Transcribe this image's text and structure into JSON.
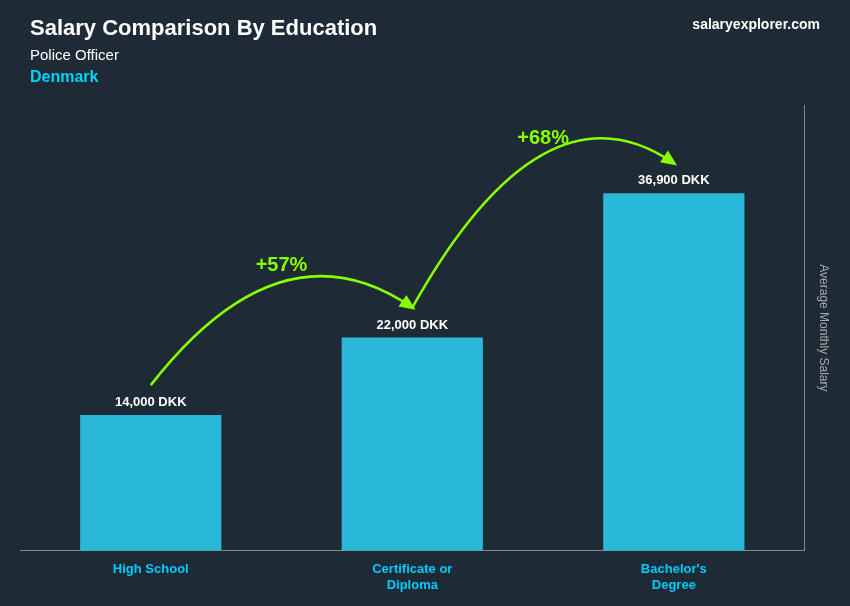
{
  "chart_data": {
    "type": "bar",
    "title": "Salary Comparison By Education",
    "subtitle": "Police Officer",
    "categories": [
      "High School",
      "Certificate or\nDiploma",
      "Bachelor's\nDegree"
    ],
    "values": [
      14000,
      22000,
      36900
    ],
    "value_labels": [
      "14,000 DKK",
      "22,000 DKK",
      "36,900 DKK"
    ],
    "data_labels": true,
    "color": "#29b8d8",
    "ylabel": "Average Monthly Salary",
    "ylim": [
      0,
      46000
    ],
    "yticks": [],
    "grid": false,
    "tick_labels": "x",
    "annotations": [
      {
        "text": "Denmark"
      },
      {
        "text": "salaryexplorer.com"
      },
      {
        "text": "+57%",
        "from": "High School",
        "to": "Certificate or\nDiploma"
      },
      {
        "text": "+68%",
        "from": "Certificate or\nDiploma",
        "to": "Bachelor's\nDegree"
      }
    ]
  }
}
